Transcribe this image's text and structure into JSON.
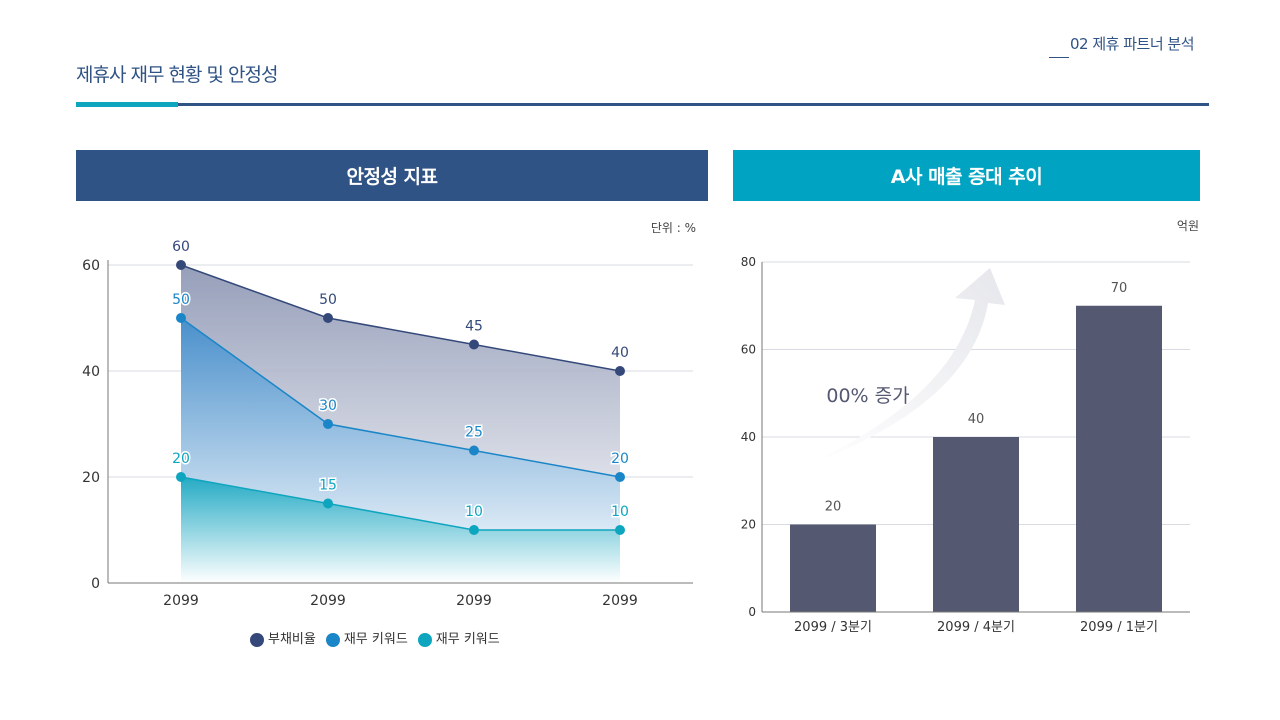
{
  "header": {
    "title": "제휴사 재무 현황 및 안정성",
    "section_number": "02",
    "section_title": "제휴 파트너 분석"
  },
  "colors": {
    "navy": "#2f5384",
    "teal": "#00a3c1",
    "bar": "#545870"
  },
  "chart_data": [
    {
      "type": "area",
      "title": "안정성 지표",
      "unit_label": "단위 : %",
      "categories": [
        "2099",
        "2099",
        "2099",
        "2099"
      ],
      "ylim": [
        0,
        60
      ],
      "yticks": [
        0,
        20,
        40,
        60
      ],
      "grid": true,
      "legend_position": "bottom",
      "series": [
        {
          "name": "부채비율",
          "values": [
            60,
            50,
            45,
            40
          ],
          "color": "#34497a"
        },
        {
          "name": "재무 키워드",
          "values": [
            50,
            30,
            25,
            20
          ],
          "color": "#1a86c8"
        },
        {
          "name": "재무 키워드",
          "values": [
            20,
            15,
            10,
            10
          ],
          "color": "#0ea5bf"
        }
      ]
    },
    {
      "type": "bar",
      "title": "A사 매출 증대 추이",
      "unit_label": "억원",
      "categories": [
        "2099 / 3분기",
        "2099 / 4분기",
        "2099 / 1분기"
      ],
      "values": [
        20,
        40,
        70
      ],
      "ylim": [
        0,
        80
      ],
      "yticks": [
        0,
        20,
        40,
        60,
        80
      ],
      "grid": true,
      "annotation": "00% 증가",
      "color": "#545870"
    }
  ]
}
